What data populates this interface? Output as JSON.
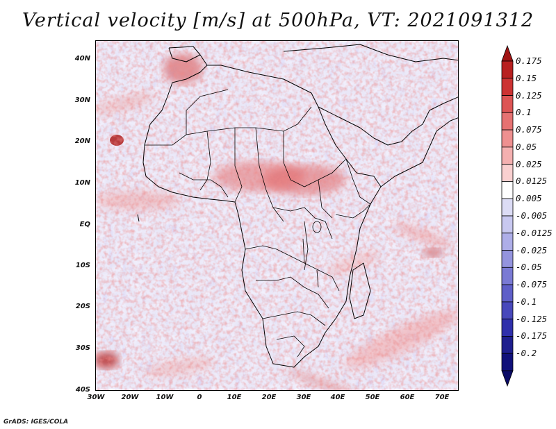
{
  "title": "Vertical velocity [m/s] at 500hPa, VT: 2021091312",
  "credit": "GrADS: IGES/COLA",
  "map": {
    "lat_ticks": [
      "40N",
      "30N",
      "20N",
      "10N",
      "EQ",
      "10S",
      "20S",
      "30S",
      "40S"
    ],
    "lon_ticks": [
      "30W",
      "20W",
      "10W",
      "0",
      "10E",
      "20E",
      "30E",
      "40E",
      "50E",
      "60E",
      "70E"
    ]
  },
  "colorbar": {
    "labels": [
      "0.175",
      "0.15",
      "0.125",
      "0.1",
      "0.075",
      "0.05",
      "0.025",
      "0.0125",
      "0.005",
      "-0.005",
      "-0.0125",
      "-0.025",
      "-0.05",
      "-0.075",
      "-0.1",
      "-0.125",
      "-0.175",
      "-0.2"
    ],
    "colors": [
      "#a01414",
      "#b82020",
      "#cc3333",
      "#dd5555",
      "#e67272",
      "#ee9090",
      "#f4b0b0",
      "#f9d0d0",
      "#ffffff",
      "#dcdcf5",
      "#c8c8f0",
      "#aeaee8",
      "#9494de",
      "#7a7ad4",
      "#5f5fc8",
      "#4848bb",
      "#2f2fab",
      "#1e1e8e",
      "#10107a",
      "#0a0a66"
    ]
  }
}
